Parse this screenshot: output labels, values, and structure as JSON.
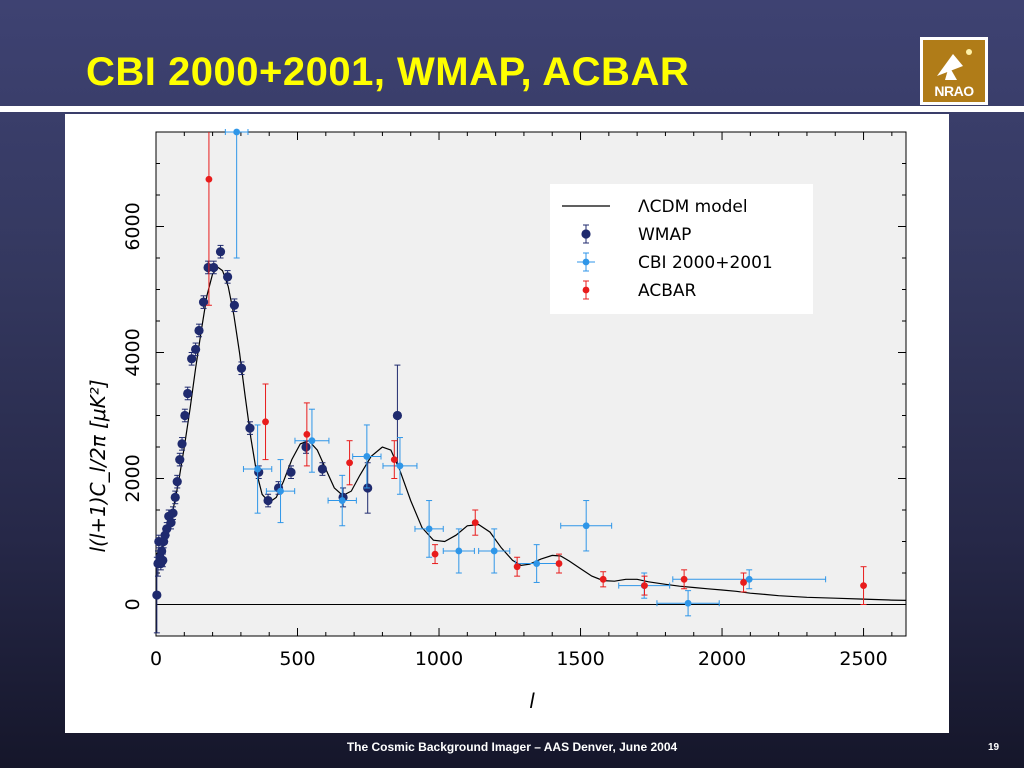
{
  "slide": {
    "title": "CBI 2000+2001, WMAP, ACBAR",
    "footer": "The Cosmic Background Imager – AAS Denver, June 2004",
    "page_number": "19",
    "logo_text": "NRAO"
  },
  "chart_data": {
    "type": "scatter",
    "title": "",
    "xlabel": "l",
    "ylabel": "l(l+1)C_l/2π [μK²]",
    "xlim": [
      0,
      2650
    ],
    "ylim": [
      -500,
      7500
    ],
    "x_ticks": [
      0,
      500,
      1000,
      1500,
      2000,
      2500
    ],
    "y_ticks": [
      0,
      2000,
      4000,
      6000
    ],
    "grid": false,
    "legend_position": "top-right",
    "colors": {
      "model": "#000000",
      "WMAP": "#1f2a6e",
      "CBI 2000+2001": "#2f96e8",
      "ACBAR": "#e81c1c",
      "plot_bg": "#f0f0f0"
    },
    "legend": [
      {
        "label": "ΛCDM model",
        "kind": "line"
      },
      {
        "label": "WMAP",
        "kind": "point"
      },
      {
        "label": "CBI 2000+2001",
        "kind": "point"
      },
      {
        "label": "ACBAR",
        "kind": "point"
      }
    ],
    "series": [
      {
        "name": "ΛCDM model",
        "kind": "line",
        "points": [
          [
            2,
            800
          ],
          [
            20,
            900
          ],
          [
            40,
            1150
          ],
          [
            60,
            1500
          ],
          [
            80,
            1950
          ],
          [
            100,
            2500
          ],
          [
            120,
            3100
          ],
          [
            140,
            3750
          ],
          [
            160,
            4350
          ],
          [
            180,
            4900
          ],
          [
            200,
            5250
          ],
          [
            220,
            5350
          ],
          [
            235,
            5300
          ],
          [
            255,
            5050
          ],
          [
            275,
            4600
          ],
          [
            295,
            4000
          ],
          [
            315,
            3300
          ],
          [
            335,
            2650
          ],
          [
            355,
            2100
          ],
          [
            375,
            1750
          ],
          [
            400,
            1620
          ],
          [
            425,
            1700
          ],
          [
            450,
            1950
          ],
          [
            480,
            2300
          ],
          [
            510,
            2550
          ],
          [
            540,
            2600
          ],
          [
            570,
            2450
          ],
          [
            600,
            2150
          ],
          [
            630,
            1850
          ],
          [
            660,
            1730
          ],
          [
            690,
            1800
          ],
          [
            720,
            2050
          ],
          [
            760,
            2350
          ],
          [
            800,
            2500
          ],
          [
            830,
            2450
          ],
          [
            860,
            2150
          ],
          [
            900,
            1650
          ],
          [
            940,
            1220
          ],
          [
            980,
            1020
          ],
          [
            1020,
            1000
          ],
          [
            1060,
            1100
          ],
          [
            1100,
            1250
          ],
          [
            1140,
            1270
          ],
          [
            1180,
            1150
          ],
          [
            1220,
            900
          ],
          [
            1260,
            700
          ],
          [
            1290,
            620
          ],
          [
            1320,
            640
          ],
          [
            1360,
            720
          ],
          [
            1400,
            780
          ],
          [
            1430,
            770
          ],
          [
            1460,
            690
          ],
          [
            1500,
            570
          ],
          [
            1540,
            450
          ],
          [
            1580,
            380
          ],
          [
            1620,
            370
          ],
          [
            1660,
            400
          ],
          [
            1700,
            400
          ],
          [
            1740,
            360
          ],
          [
            1800,
            320
          ],
          [
            1850,
            290
          ],
          [
            1900,
            270
          ],
          [
            1950,
            250
          ],
          [
            2000,
            230
          ],
          [
            2050,
            210
          ],
          [
            2100,
            180
          ],
          [
            2150,
            160
          ],
          [
            2200,
            140
          ],
          [
            2300,
            115
          ],
          [
            2400,
            100
          ],
          [
            2500,
            85
          ],
          [
            2600,
            70
          ],
          [
            2650,
            65
          ]
        ]
      },
      {
        "name": "WMAP",
        "kind": "points",
        "points": [
          [
            3,
            150,
            600,
            0
          ],
          [
            7,
            650,
            200,
            0
          ],
          [
            10,
            1000,
            100,
            0
          ],
          [
            14,
            750,
            100,
            0
          ],
          [
            17,
            650,
            100,
            0
          ],
          [
            20,
            850,
            100,
            0
          ],
          [
            24,
            700,
            100,
            0
          ],
          [
            27,
            1000,
            100,
            0
          ],
          [
            32,
            1100,
            100,
            0
          ],
          [
            38,
            1200,
            100,
            0
          ],
          [
            45,
            1400,
            100,
            0
          ],
          [
            53,
            1300,
            100,
            0
          ],
          [
            60,
            1450,
            100,
            0
          ],
          [
            68,
            1700,
            100,
            0
          ],
          [
            75,
            1950,
            100,
            0
          ],
          [
            84,
            2300,
            100,
            0
          ],
          [
            92,
            2550,
            100,
            0
          ],
          [
            102,
            3000,
            100,
            0
          ],
          [
            112,
            3350,
            100,
            0
          ],
          [
            126,
            3900,
            100,
            0
          ],
          [
            140,
            4050,
            100,
            0
          ],
          [
            152,
            4350,
            100,
            0
          ],
          [
            168,
            4800,
            100,
            0
          ],
          [
            184,
            5350,
            100,
            0
          ],
          [
            204,
            5350,
            100,
            0
          ],
          [
            228,
            5600,
            100,
            0
          ],
          [
            253,
            5200,
            100,
            0
          ],
          [
            277,
            4750,
            100,
            0
          ],
          [
            302,
            3750,
            100,
            0
          ],
          [
            332,
            2800,
            100,
            0
          ],
          [
            363,
            2100,
            100,
            0
          ],
          [
            396,
            1650,
            100,
            0
          ],
          [
            433,
            1850,
            100,
            0
          ],
          [
            477,
            2100,
            100,
            0
          ],
          [
            530,
            2500,
            100,
            0
          ],
          [
            588,
            2150,
            100,
            0
          ],
          [
            661,
            1700,
            150,
            0
          ],
          [
            748,
            1850,
            400,
            0
          ],
          [
            853,
            3000,
            800,
            0
          ]
        ]
      },
      {
        "name": "CBI 2000+2001",
        "kind": "points",
        "points": [
          [
            285,
            7500,
            2000,
            40
          ],
          [
            359,
            2150,
            700,
            50
          ],
          [
            440,
            1800,
            500,
            50
          ],
          [
            551,
            2600,
            500,
            60
          ],
          [
            658,
            1650,
            400,
            50
          ],
          [
            745,
            2350,
            500,
            50
          ],
          [
            862,
            2200,
            450,
            60
          ],
          [
            965,
            1200,
            450,
            50
          ],
          [
            1070,
            850,
            350,
            55
          ],
          [
            1195,
            850,
            350,
            55
          ],
          [
            1345,
            650,
            300,
            75
          ],
          [
            1520,
            1250,
            400,
            90
          ],
          [
            1725,
            300,
            200,
            90
          ],
          [
            1880,
            20,
            200,
            110
          ],
          [
            2096,
            400,
            150,
            270
          ]
        ]
      },
      {
        "name": "ACBAR",
        "kind": "points",
        "points": [
          [
            187,
            6750,
            2000,
            0
          ],
          [
            387,
            2900,
            600,
            0
          ],
          [
            533,
            2700,
            500,
            0
          ],
          [
            684,
            2250,
            350,
            0
          ],
          [
            842,
            2300,
            300,
            0
          ],
          [
            986,
            800,
            150,
            0
          ],
          [
            1128,
            1300,
            200,
            0
          ],
          [
            1276,
            600,
            150,
            0
          ],
          [
            1424,
            650,
            150,
            0
          ],
          [
            1580,
            400,
            120,
            0
          ],
          [
            1726,
            300,
            150,
            0
          ],
          [
            1866,
            400,
            150,
            0
          ],
          [
            2076,
            350,
            150,
            0
          ],
          [
            2500,
            300,
            300,
            0
          ]
        ]
      }
    ]
  }
}
